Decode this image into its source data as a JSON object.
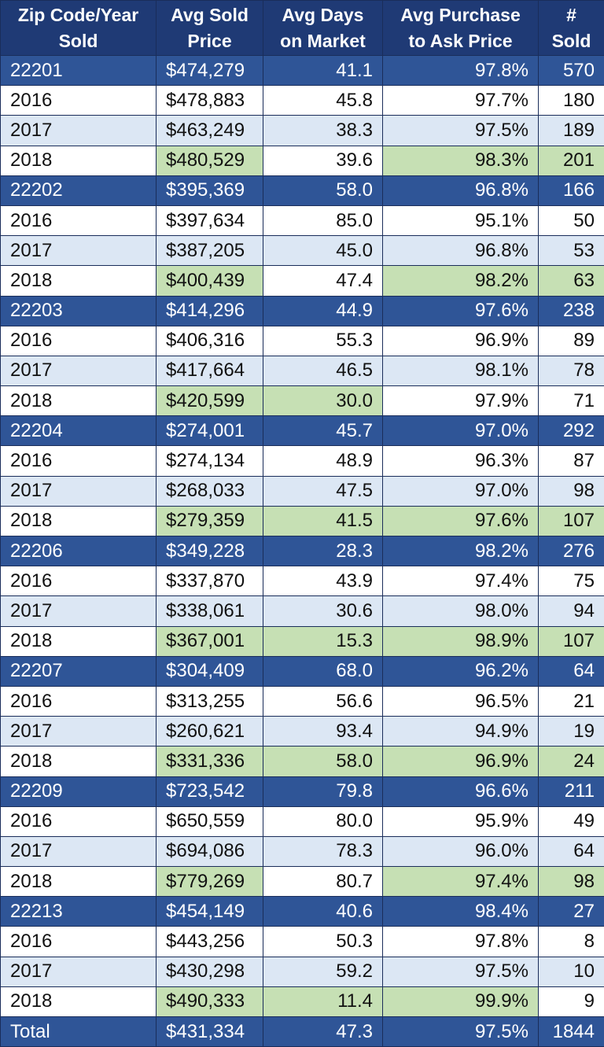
{
  "headers": [
    "Zip Code/Year Sold",
    "Avg Sold Price",
    "Avg Days on Market",
    "Avg Purchase to Ask Price",
    "# Sold"
  ],
  "header_lines": [
    [
      "Zip Code/Year",
      "Sold"
    ],
    [
      "Avg Sold",
      "Price"
    ],
    [
      "Avg Days",
      "on Market"
    ],
    [
      "Avg Purchase",
      "to Ask Price"
    ],
    [
      "#",
      "Sold"
    ]
  ],
  "colors": {
    "header_bg": "#1f3a75",
    "zip_row_bg": "#2f5597",
    "alt_row_bg": "#dce7f4",
    "highlight_bg": "#c6e0b4",
    "border": "#1a2d5a"
  },
  "groups": [
    {
      "zip": [
        "22201",
        "$474,279",
        "41.1",
        "97.8%",
        "570"
      ],
      "years": [
        {
          "cells": [
            "2016",
            "$478,883",
            "45.8",
            "97.7%",
            "180"
          ],
          "hl": [
            false,
            false,
            false,
            false,
            false
          ]
        },
        {
          "cells": [
            "2017",
            "$463,249",
            "38.3",
            "97.5%",
            "189"
          ],
          "hl": [
            false,
            false,
            false,
            false,
            false
          ]
        },
        {
          "cells": [
            "2018",
            "$480,529",
            "39.6",
            "98.3%",
            "201"
          ],
          "hl": [
            false,
            true,
            false,
            true,
            true
          ]
        }
      ]
    },
    {
      "zip": [
        "22202",
        "$395,369",
        "58.0",
        "96.8%",
        "166"
      ],
      "years": [
        {
          "cells": [
            "2016",
            "$397,634",
            "85.0",
            "95.1%",
            "50"
          ],
          "hl": [
            false,
            false,
            false,
            false,
            false
          ]
        },
        {
          "cells": [
            "2017",
            "$387,205",
            "45.0",
            "96.8%",
            "53"
          ],
          "hl": [
            false,
            false,
            false,
            false,
            false
          ]
        },
        {
          "cells": [
            "2018",
            "$400,439",
            "47.4",
            "98.2%",
            "63"
          ],
          "hl": [
            false,
            true,
            false,
            true,
            true
          ]
        }
      ]
    },
    {
      "zip": [
        "22203",
        "$414,296",
        "44.9",
        "97.6%",
        "238"
      ],
      "years": [
        {
          "cells": [
            "2016",
            "$406,316",
            "55.3",
            "96.9%",
            "89"
          ],
          "hl": [
            false,
            false,
            false,
            false,
            false
          ]
        },
        {
          "cells": [
            "2017",
            "$417,664",
            "46.5",
            "98.1%",
            "78"
          ],
          "hl": [
            false,
            false,
            false,
            false,
            false
          ]
        },
        {
          "cells": [
            "2018",
            "$420,599",
            "30.0",
            "97.9%",
            "71"
          ],
          "hl": [
            false,
            true,
            true,
            false,
            false
          ]
        }
      ]
    },
    {
      "zip": [
        "22204",
        "$274,001",
        "45.7",
        "97.0%",
        "292"
      ],
      "years": [
        {
          "cells": [
            "2016",
            "$274,134",
            "48.9",
            "96.3%",
            "87"
          ],
          "hl": [
            false,
            false,
            false,
            false,
            false
          ]
        },
        {
          "cells": [
            "2017",
            "$268,033",
            "47.5",
            "97.0%",
            "98"
          ],
          "hl": [
            false,
            false,
            false,
            false,
            false
          ]
        },
        {
          "cells": [
            "2018",
            "$279,359",
            "41.5",
            "97.6%",
            "107"
          ],
          "hl": [
            false,
            true,
            true,
            true,
            true
          ]
        }
      ]
    },
    {
      "zip": [
        "22206",
        "$349,228",
        "28.3",
        "98.2%",
        "276"
      ],
      "years": [
        {
          "cells": [
            "2016",
            "$337,870",
            "43.9",
            "97.4%",
            "75"
          ],
          "hl": [
            false,
            false,
            false,
            false,
            false
          ]
        },
        {
          "cells": [
            "2017",
            "$338,061",
            "30.6",
            "98.0%",
            "94"
          ],
          "hl": [
            false,
            false,
            false,
            false,
            false
          ]
        },
        {
          "cells": [
            "2018",
            "$367,001",
            "15.3",
            "98.9%",
            "107"
          ],
          "hl": [
            false,
            true,
            true,
            true,
            true
          ]
        }
      ]
    },
    {
      "zip": [
        "22207",
        "$304,409",
        "68.0",
        "96.2%",
        "64"
      ],
      "years": [
        {
          "cells": [
            "2016",
            "$313,255",
            "56.6",
            "96.5%",
            "21"
          ],
          "hl": [
            false,
            false,
            false,
            false,
            false
          ]
        },
        {
          "cells": [
            "2017",
            "$260,621",
            "93.4",
            "94.9%",
            "19"
          ],
          "hl": [
            false,
            false,
            false,
            false,
            false
          ]
        },
        {
          "cells": [
            "2018",
            "$331,336",
            "58.0",
            "96.9%",
            "24"
          ],
          "hl": [
            false,
            true,
            true,
            true,
            true
          ]
        }
      ]
    },
    {
      "zip": [
        "22209",
        "$723,542",
        "79.8",
        "96.6%",
        "211"
      ],
      "years": [
        {
          "cells": [
            "2016",
            "$650,559",
            "80.0",
            "95.9%",
            "49"
          ],
          "hl": [
            false,
            false,
            false,
            false,
            false
          ]
        },
        {
          "cells": [
            "2017",
            "$694,086",
            "78.3",
            "96.0%",
            "64"
          ],
          "hl": [
            false,
            false,
            false,
            false,
            false
          ]
        },
        {
          "cells": [
            "2018",
            "$779,269",
            "80.7",
            "97.4%",
            "98"
          ],
          "hl": [
            false,
            true,
            false,
            true,
            true
          ]
        }
      ]
    },
    {
      "zip": [
        "22213",
        "$454,149",
        "40.6",
        "98.4%",
        "27"
      ],
      "years": [
        {
          "cells": [
            "2016",
            "$443,256",
            "50.3",
            "97.8%",
            "8"
          ],
          "hl": [
            false,
            false,
            false,
            false,
            false
          ]
        },
        {
          "cells": [
            "2017",
            "$430,298",
            "59.2",
            "97.5%",
            "10"
          ],
          "hl": [
            false,
            false,
            false,
            false,
            false
          ]
        },
        {
          "cells": [
            "2018",
            "$490,333",
            "11.4",
            "99.9%",
            "9"
          ],
          "hl": [
            false,
            true,
            true,
            true,
            false
          ]
        }
      ]
    }
  ],
  "total": [
    "Total",
    "$431,334",
    "47.3",
    "97.5%",
    "1844"
  ]
}
